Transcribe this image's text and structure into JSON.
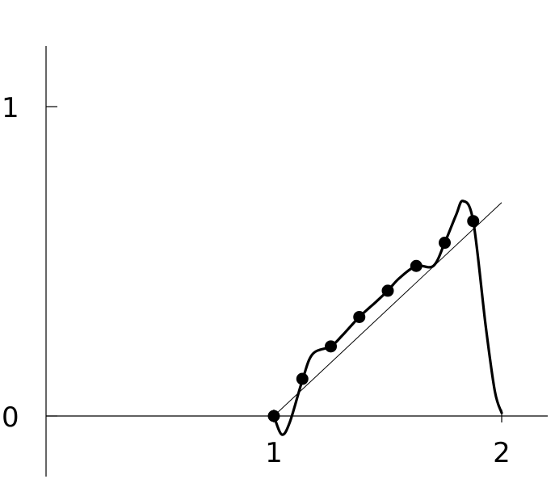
{
  "chart_data": {
    "type": "line",
    "title": "",
    "xlabel": "",
    "ylabel": "",
    "xlim": [
      0,
      2.2
    ],
    "ylim": [
      -0.2,
      1.2
    ],
    "xticks": [
      {
        "value": 1,
        "label": "1"
      },
      {
        "value": 2,
        "label": "2"
      }
    ],
    "yticks": [
      {
        "value": 0,
        "label": "0"
      },
      {
        "value": 1,
        "label": "1"
      }
    ],
    "grid": false,
    "legend": "none",
    "colors": {
      "axis": "#000000",
      "series": "#000000"
    },
    "series": [
      {
        "style": "thin-line",
        "x": [
          1,
          2
        ],
        "y": [
          0,
          0.69
        ]
      },
      {
        "style": "thick-curve",
        "x": [
          1.0,
          1.035,
          1.07,
          1.125,
          1.17,
          1.25,
          1.3,
          1.375,
          1.45,
          1.5,
          1.55,
          1.625,
          1.7,
          1.75,
          1.8,
          1.83,
          1.875,
          1.93,
          1.97,
          2.0
        ],
        "y": [
          0.0,
          -0.06,
          -0.02,
          0.115,
          0.2,
          0.225,
          0.26,
          0.32,
          0.37,
          0.405,
          0.445,
          0.485,
          0.485,
          0.56,
          0.65,
          0.695,
          0.63,
          0.29,
          0.08,
          0.01
        ]
      },
      {
        "style": "points",
        "x": [
          1.0,
          1.125,
          1.25,
          1.375,
          1.5,
          1.625,
          1.75,
          1.875
        ],
        "y": [
          0.0,
          0.12,
          0.225,
          0.32,
          0.405,
          0.485,
          0.56,
          0.63
        ]
      }
    ]
  }
}
